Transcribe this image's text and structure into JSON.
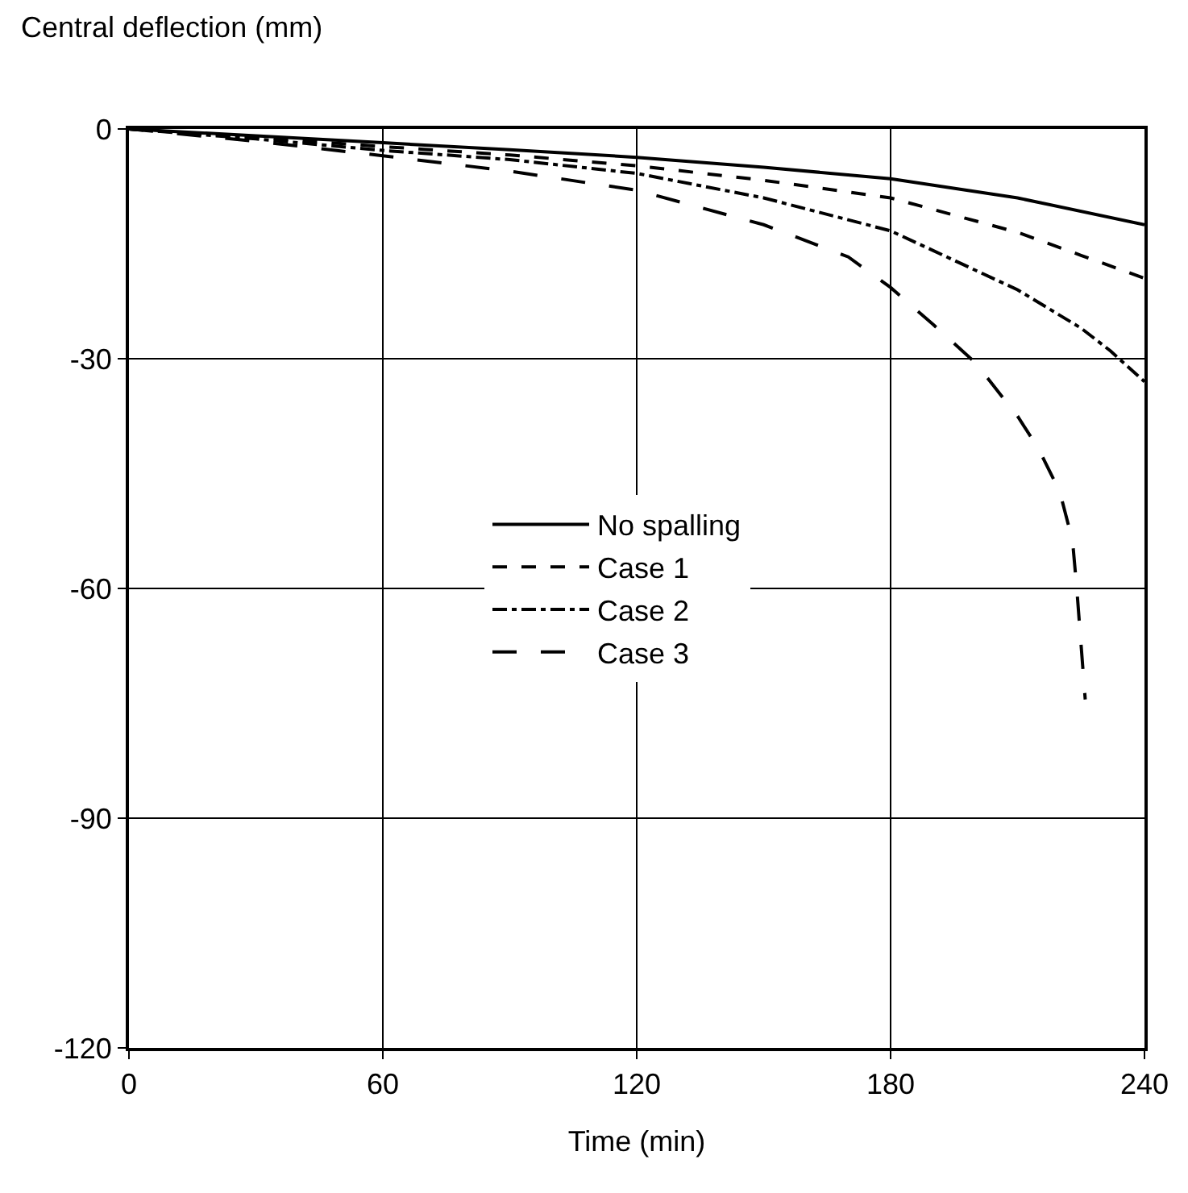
{
  "chart_data": {
    "type": "line",
    "xlabel": "Time (min)",
    "ylabel": "Central deflection (mm)",
    "xlim": [
      0,
      240
    ],
    "ylim": [
      -120,
      0
    ],
    "xticks": [
      0,
      60,
      120,
      180,
      240
    ],
    "yticks": [
      -120,
      -90,
      -60,
      -30,
      0
    ],
    "grid": true,
    "legend": "center",
    "marker": "none",
    "series": [
      {
        "name": "No spalling",
        "color": "#000000",
        "line_style": "solid",
        "x": [
          0,
          30,
          60,
          90,
          120,
          150,
          180,
          210,
          240
        ],
        "values": [
          0,
          -0.9,
          -1.8,
          -2.7,
          -3.7,
          -5,
          -6.5,
          -9,
          -12.5
        ]
      },
      {
        "name": "Case 1",
        "color": "#000000",
        "line_style": "dashed",
        "x": [
          0,
          30,
          60,
          90,
          120,
          150,
          180,
          210,
          225,
          240
        ],
        "values": [
          0,
          -1.1,
          -2.3,
          -3.4,
          -4.8,
          -6.7,
          -9,
          -13.5,
          -16.5,
          -19.5
        ]
      },
      {
        "name": "Case 2",
        "color": "#000000",
        "line_style": "dashdot",
        "x": [
          0,
          30,
          60,
          90,
          120,
          150,
          180,
          210,
          225,
          232,
          240
        ],
        "values": [
          0,
          -1.3,
          -2.8,
          -4,
          -5.8,
          -9,
          -13.3,
          -21,
          -26,
          -29,
          -33
        ]
      },
      {
        "name": "Case 3",
        "color": "#000000",
        "line_style": "longdash",
        "x": [
          0,
          30,
          60,
          90,
          120,
          150,
          170,
          180,
          190,
          200,
          210,
          215,
          220,
          223,
          224,
          226
        ],
        "values": [
          0,
          -1.6,
          -3.5,
          -5.5,
          -8,
          -12.5,
          -16.7,
          -20.7,
          -25.5,
          -30.5,
          -37.5,
          -41.8,
          -47.4,
          -53.8,
          -60,
          -74.5
        ]
      }
    ]
  }
}
